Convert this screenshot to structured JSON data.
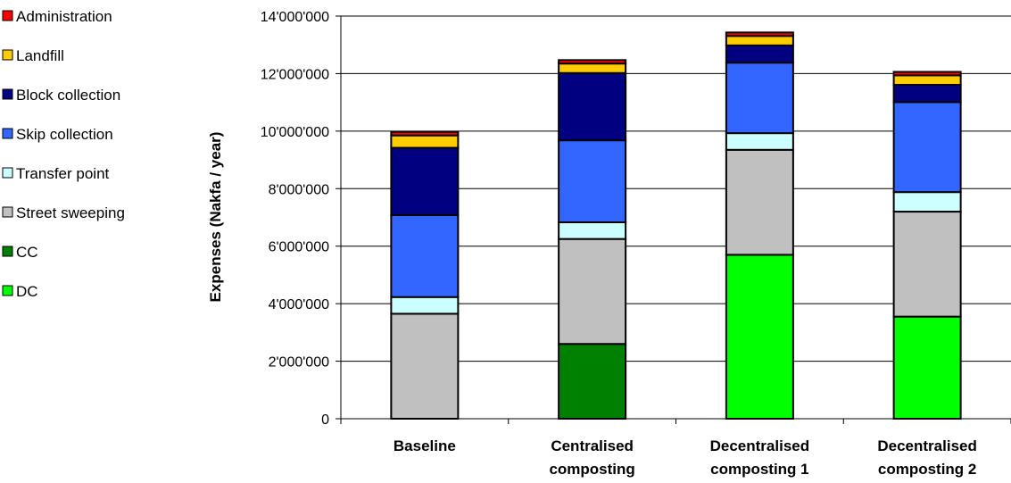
{
  "chart_data": {
    "type": "bar",
    "stacked": true,
    "title": "",
    "xlabel": "",
    "ylabel": "Expenses (Nakfa / year)",
    "ylim": [
      0,
      14000000
    ],
    "yticks": [
      0,
      2000000,
      4000000,
      6000000,
      8000000,
      10000000,
      12000000,
      14000000
    ],
    "ytick_labels": [
      "0",
      "2'000'000",
      "4'000'000",
      "6'000'000",
      "8'000'000",
      "10'000'000",
      "12'000'000",
      "14'000'000"
    ],
    "categories": [
      [
        "Baseline"
      ],
      [
        "Centralised",
        "composting"
      ],
      [
        "Decentralised",
        "composting 1"
      ],
      [
        "Decentralised",
        "composting 2"
      ]
    ],
    "grid": "horizontal",
    "legend_position": "left",
    "series": [
      {
        "name": "DC",
        "color": "#00ff00",
        "values": [
          0,
          0,
          5700000,
          3550000
        ]
      },
      {
        "name": "CC",
        "color": "#008000",
        "values": [
          0,
          2600000,
          0,
          0
        ]
      },
      {
        "name": "Street sweeping",
        "color": "#c0c0c0",
        "values": [
          3650000,
          3650000,
          3650000,
          3650000
        ]
      },
      {
        "name": "Transfer point",
        "color": "#ccffff",
        "values": [
          580000,
          580000,
          580000,
          680000
        ]
      },
      {
        "name": "Skip collection",
        "color": "#3366ff",
        "values": [
          2850000,
          2850000,
          2450000,
          3130000
        ]
      },
      {
        "name": "Block collection",
        "color": "#000080",
        "values": [
          2340000,
          2340000,
          600000,
          600000
        ]
      },
      {
        "name": "Landfill",
        "color": "#ffcc00",
        "values": [
          430000,
          330000,
          330000,
          330000
        ]
      },
      {
        "name": "Administration",
        "color": "#ff0000",
        "values": [
          120000,
          120000,
          120000,
          120000
        ]
      }
    ]
  }
}
